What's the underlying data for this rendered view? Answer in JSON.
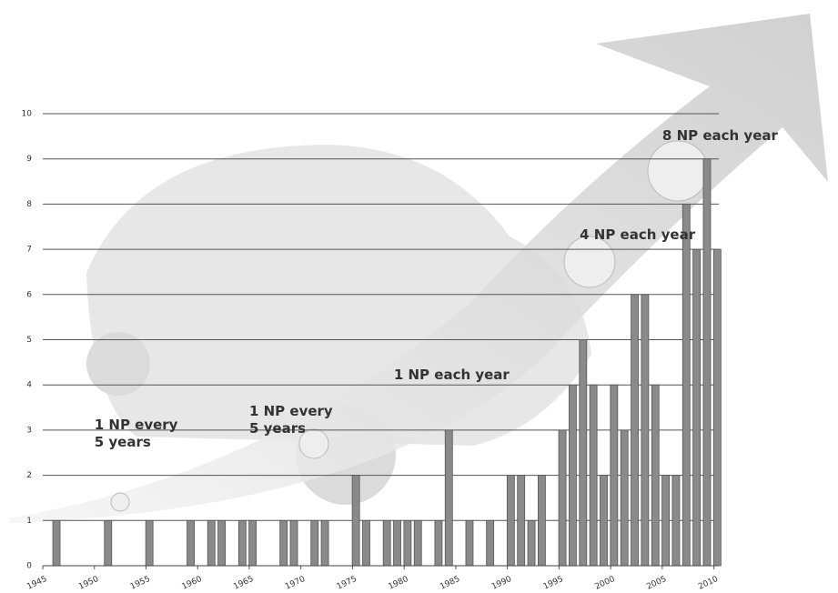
{
  "chart_data": {
    "type": "bar",
    "x": [
      1946,
      1951,
      1955,
      1959,
      1961,
      1962,
      1964,
      1965,
      1968,
      1969,
      1971,
      1972,
      1975,
      1976,
      1978,
      1979,
      1980,
      1981,
      1983,
      1984,
      1986,
      1988,
      1990,
      1991,
      1992,
      1993,
      1995,
      1996,
      1997,
      1998,
      1999,
      2000,
      2001,
      2002,
      2003,
      2004,
      2005,
      2006,
      2007,
      2008,
      2009,
      2010
    ],
    "values": [
      1,
      1,
      1,
      1,
      1,
      1,
      1,
      1,
      1,
      1,
      1,
      1,
      2,
      1,
      1,
      1,
      1,
      1,
      1,
      3,
      1,
      1,
      2,
      2,
      1,
      2,
      3,
      4,
      5,
      4,
      2,
      4,
      3,
      6,
      6,
      4,
      2,
      2,
      8,
      7,
      9,
      7
    ],
    "color": "#8a8a8a",
    "xlim": [
      1945,
      2011
    ],
    "xticks": [
      1945,
      1950,
      1955,
      1960,
      1965,
      1970,
      1975,
      1980,
      1985,
      1990,
      1995,
      2000,
      2005,
      2010
    ],
    "ylim": [
      0,
      10
    ],
    "yticks": [
      0,
      1,
      2,
      3,
      4,
      5,
      6,
      7,
      8,
      9,
      10
    ],
    "grid": true,
    "annotations": [
      {
        "text": "1 NP every 5 years",
        "x": 1950,
        "y": 3.3
      },
      {
        "text": "1 NP every 5 years",
        "x": 1965,
        "y": 3.6
      },
      {
        "text": "1 NP each year",
        "x": 1979,
        "y": 4.4
      },
      {
        "text": "4 NP each year",
        "x": 1997,
        "y": 7.5
      },
      {
        "text": "8 NP each year",
        "x": 2005,
        "y": 9.7
      }
    ]
  }
}
